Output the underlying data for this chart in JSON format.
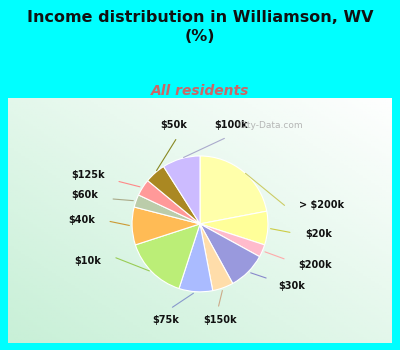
{
  "title": "Income distribution in Williamson, WV\n(%)",
  "subtitle": "All residents",
  "title_color": "#111111",
  "subtitle_color": "#cc6666",
  "bg_color": "#00ffff",
  "chart_bg_color": "#d8f5e8",
  "labels": [
    "> $200k",
    "$20k",
    "$200k",
    "$30k",
    "$150k",
    "$75k",
    "$10k",
    "$40k",
    "$60k",
    "$125k",
    "$50k",
    "$100k"
  ],
  "values": [
    22,
    8,
    3,
    9,
    5,
    8,
    15,
    9,
    3,
    4,
    5,
    9
  ],
  "colors": [
    "#ffffaa",
    "#ffff99",
    "#ffbbcc",
    "#9999dd",
    "#ffddaa",
    "#aabbff",
    "#bbee77",
    "#ffbb55",
    "#bbccaa",
    "#ff9999",
    "#aa8822",
    "#ccbbff"
  ],
  "startangle": 90
}
